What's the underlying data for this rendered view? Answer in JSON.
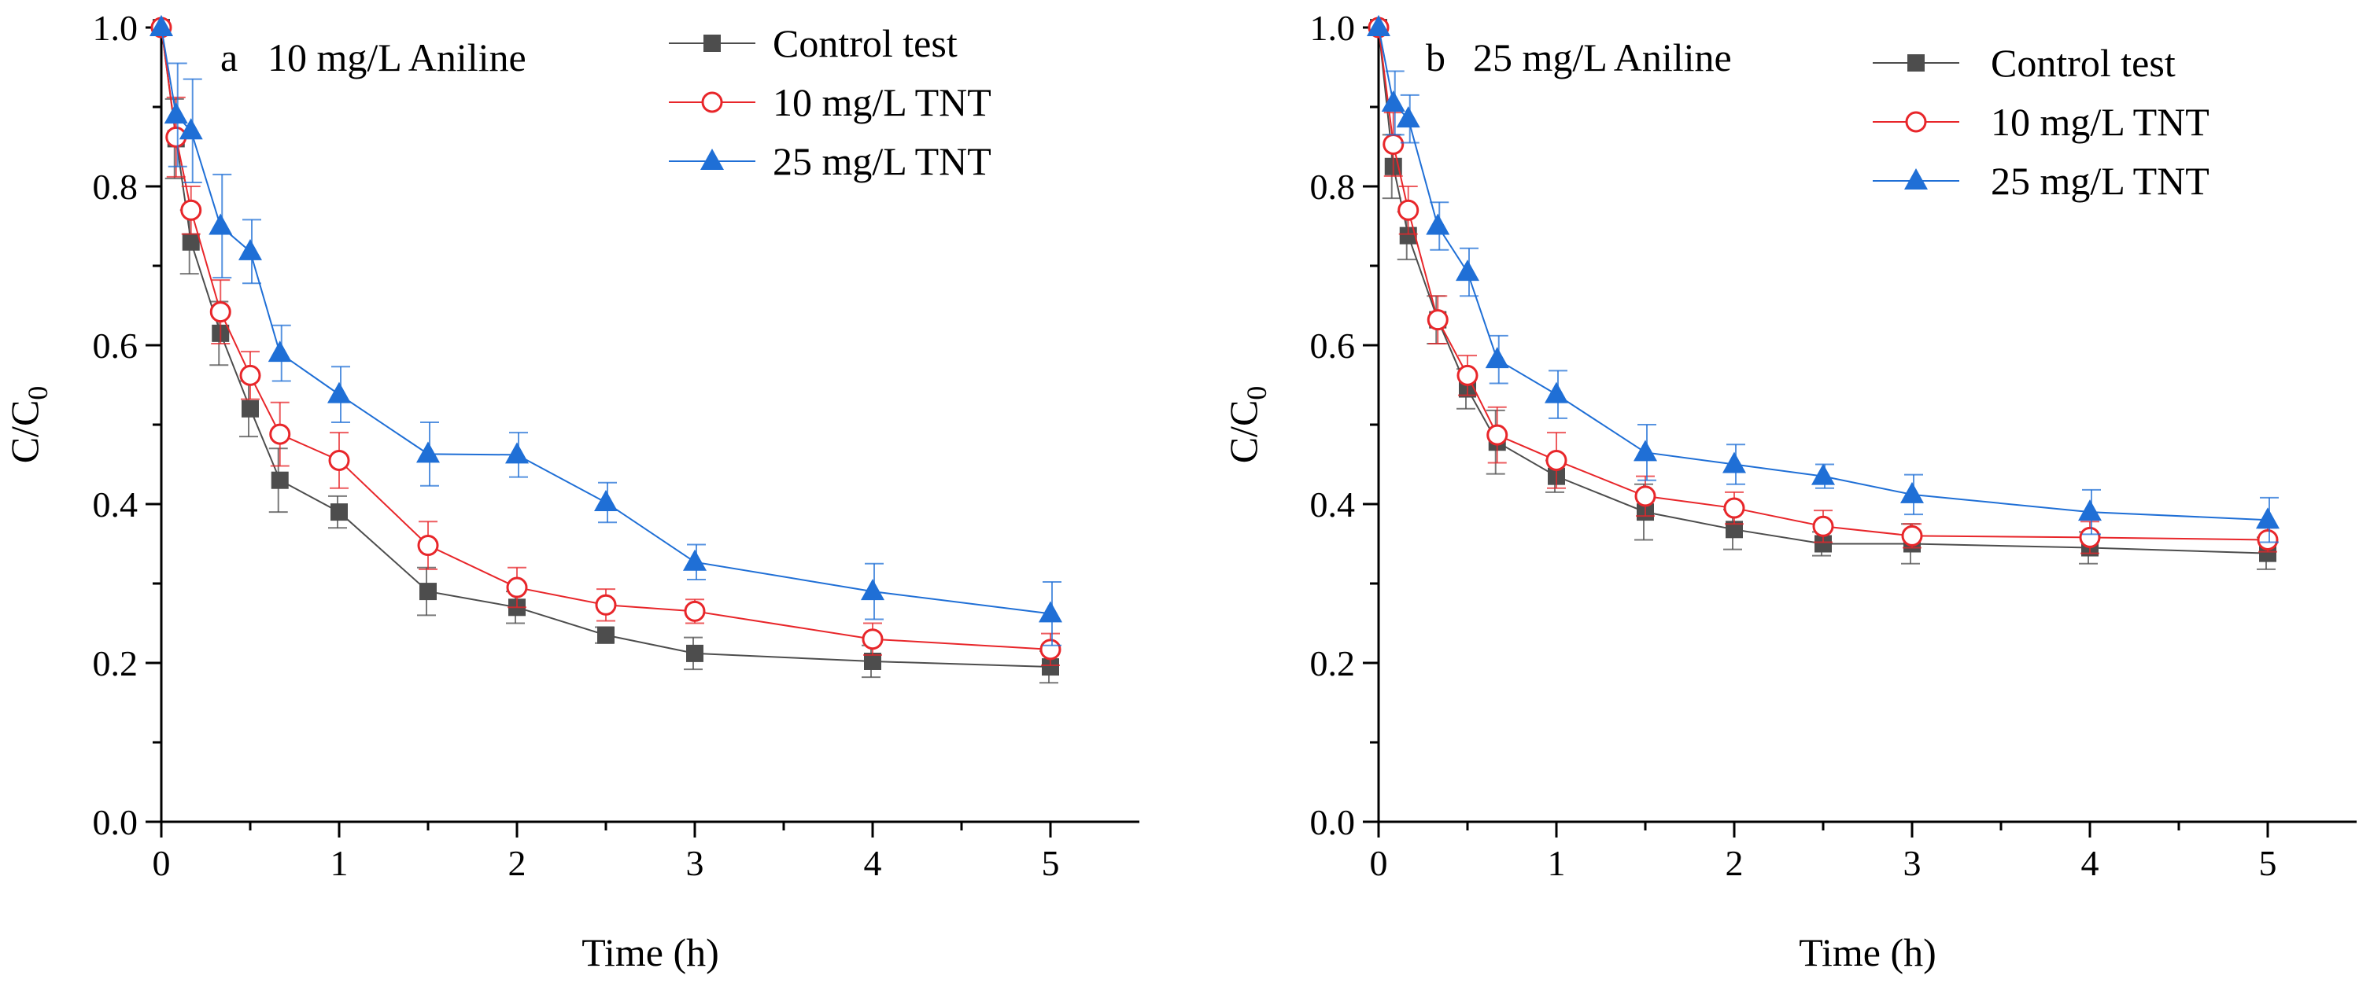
{
  "chart_data": [
    {
      "type": "line",
      "panel": "a",
      "title": "10 mg/L Aniline",
      "xlabel": "Time (h)",
      "ylabel_main": "C/C",
      "ylabel_sub": "0",
      "xlim": [
        0,
        5.5
      ],
      "ylim": [
        0,
        1.0
      ],
      "xticks": [
        0,
        1,
        2,
        3,
        4,
        5
      ],
      "yticks": [
        0.0,
        0.2,
        0.4,
        0.6,
        0.8,
        1.0
      ],
      "xtick_labels": [
        "0",
        "1",
        "2",
        "3",
        "4",
        "5"
      ],
      "ytick_labels": [
        "0.0",
        "0.2",
        "0.4",
        "0.6",
        "0.8",
        "1.0"
      ],
      "legend_position": "top-right",
      "series": [
        {
          "name": "Control test",
          "marker": "square-filled",
          "color": "#4d4d4d",
          "x": [
            0,
            0.083,
            0.167,
            0.333,
            0.5,
            0.667,
            1,
            1.5,
            2,
            2.5,
            3,
            4,
            5
          ],
          "y": [
            1.0,
            0.86,
            0.73,
            0.615,
            0.52,
            0.43,
            0.39,
            0.29,
            0.27,
            0.235,
            0.212,
            0.202,
            0.195
          ],
          "err": [
            0.0,
            0.05,
            0.04,
            0.04,
            0.035,
            0.04,
            0.02,
            0.03,
            0.02,
            0.01,
            0.02,
            0.02,
            0.02
          ]
        },
        {
          "name": "10 mg/L TNT",
          "marker": "circle-open",
          "color": "#e8262a",
          "x": [
            0,
            0.083,
            0.167,
            0.333,
            0.5,
            0.667,
            1,
            1.5,
            2,
            2.5,
            3,
            4,
            5
          ],
          "y": [
            1.0,
            0.862,
            0.77,
            0.642,
            0.562,
            0.488,
            0.455,
            0.348,
            0.295,
            0.273,
            0.265,
            0.23,
            0.217
          ],
          "err": [
            0.0,
            0.05,
            0.03,
            0.04,
            0.03,
            0.04,
            0.035,
            0.03,
            0.025,
            0.02,
            0.015,
            0.02,
            0.02
          ]
        },
        {
          "name": "25 mg/L TNT",
          "marker": "triangle-filled",
          "color": "#1f6fd6",
          "x": [
            0,
            0.083,
            0.167,
            0.333,
            0.5,
            0.667,
            1,
            1.5,
            2,
            2.5,
            3,
            4,
            5
          ],
          "y": [
            1.0,
            0.89,
            0.87,
            0.75,
            0.718,
            0.59,
            0.538,
            0.463,
            0.462,
            0.402,
            0.327,
            0.29,
            0.262
          ],
          "err": [
            0.0,
            0.065,
            0.065,
            0.065,
            0.04,
            0.035,
            0.035,
            0.04,
            0.028,
            0.025,
            0.022,
            0.035,
            0.04
          ]
        }
      ]
    },
    {
      "type": "line",
      "panel": "b",
      "title": "25 mg/L Aniline",
      "xlabel": "Time (h)",
      "ylabel_main": "C/C",
      "ylabel_sub": "0",
      "xlim": [
        0,
        5.5
      ],
      "ylim": [
        0,
        1.0
      ],
      "xticks": [
        0,
        1,
        2,
        3,
        4,
        5
      ],
      "yticks": [
        0.0,
        0.2,
        0.4,
        0.6,
        0.8,
        1.0
      ],
      "xtick_labels": [
        "0",
        "1",
        "2",
        "3",
        "4",
        "5"
      ],
      "ytick_labels": [
        "0.0",
        "0.2",
        "0.4",
        "0.6",
        "0.8",
        "1.0"
      ],
      "legend_position": "top-right",
      "series": [
        {
          "name": "Control test",
          "marker": "square-filled",
          "color": "#4d4d4d",
          "x": [
            0,
            0.083,
            0.167,
            0.333,
            0.5,
            0.667,
            1,
            1.5,
            2,
            2.5,
            3,
            4,
            5
          ],
          "y": [
            1.0,
            0.825,
            0.738,
            0.632,
            0.545,
            0.478,
            0.435,
            0.39,
            0.368,
            0.35,
            0.35,
            0.345,
            0.338
          ],
          "err": [
            0.0,
            0.04,
            0.03,
            0.03,
            0.025,
            0.04,
            0.02,
            0.035,
            0.025,
            0.015,
            0.025,
            0.02,
            0.02
          ]
        },
        {
          "name": "10 mg/L TNT",
          "marker": "circle-open",
          "color": "#e8262a",
          "x": [
            0,
            0.083,
            0.167,
            0.333,
            0.5,
            0.667,
            1,
            1.5,
            2,
            2.5,
            3,
            4,
            5
          ],
          "y": [
            1.0,
            0.853,
            0.77,
            0.632,
            0.562,
            0.487,
            0.455,
            0.41,
            0.395,
            0.372,
            0.36,
            0.358,
            0.355
          ],
          "err": [
            0.0,
            0.04,
            0.03,
            0.03,
            0.025,
            0.035,
            0.035,
            0.025,
            0.02,
            0.02,
            0.015,
            0.02,
            0.015
          ]
        },
        {
          "name": "25 mg/L TNT",
          "marker": "triangle-filled",
          "color": "#1f6fd6",
          "x": [
            0,
            0.083,
            0.167,
            0.333,
            0.5,
            0.667,
            1,
            1.5,
            2,
            2.5,
            3,
            4,
            5
          ],
          "y": [
            1.0,
            0.905,
            0.885,
            0.75,
            0.692,
            0.582,
            0.538,
            0.465,
            0.45,
            0.435,
            0.412,
            0.39,
            0.38
          ],
          "err": [
            0.0,
            0.04,
            0.03,
            0.03,
            0.03,
            0.03,
            0.03,
            0.035,
            0.025,
            0.015,
            0.025,
            0.028,
            0.028
          ]
        }
      ]
    }
  ]
}
